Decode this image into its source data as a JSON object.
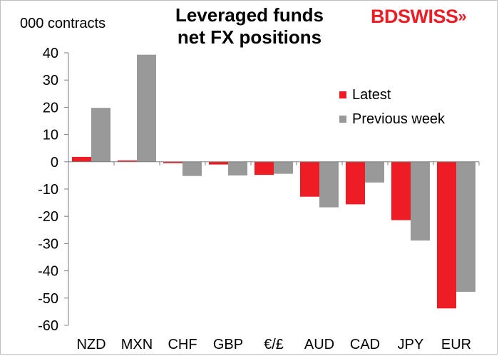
{
  "header": {
    "title_line1": "Leveraged funds",
    "title_line2": "net FX positions",
    "unit_label": "000 contracts",
    "logo_text_bd": "BD",
    "logo_text_swiss": "SWISS",
    "logo_arrow": "»"
  },
  "colors": {
    "latest": "#ee1c25",
    "previous": "#999999",
    "axis": "#7f7f7f"
  },
  "chart_data": {
    "type": "bar",
    "title": "Leveraged funds net FX positions",
    "ylabel": "000 contracts",
    "xlabel": "",
    "ylim": [
      -60,
      40
    ],
    "yticks": [
      40,
      30,
      20,
      10,
      0,
      -10,
      -20,
      -30,
      -40,
      -50,
      -60
    ],
    "categories": [
      "NZD",
      "MXN",
      "CHF",
      "GBP",
      "€/£",
      "AUD",
      "CAD",
      "JPY",
      "EUR"
    ],
    "series": [
      {
        "name": "Latest",
        "color": "#ee1c25",
        "values": [
          1.8,
          0.5,
          -0.5,
          -1.0,
          -4.8,
          -12.8,
          -15.6,
          -21.4,
          -53.8
        ]
      },
      {
        "name": "Previous week",
        "color": "#999999",
        "values": [
          19.8,
          39.3,
          -5.2,
          -5.0,
          -4.4,
          -16.7,
          -7.6,
          -28.9,
          -47.7
        ]
      }
    ],
    "legend": {
      "placement": "upper-right",
      "items": [
        "Latest",
        "Previous week"
      ]
    }
  }
}
